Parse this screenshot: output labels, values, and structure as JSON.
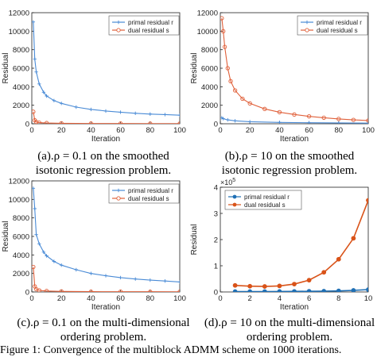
{
  "chart_data": [
    {
      "type": "line",
      "ylabel": "Residual",
      "xlabel": "Iteration",
      "xlim": [
        0,
        100
      ],
      "ylim": [
        0,
        12000
      ],
      "xticks": [
        "0",
        "20",
        "40",
        "60",
        "80",
        "100"
      ],
      "yticks": [
        "0",
        "2000",
        "4000",
        "6000",
        "8000",
        "10000",
        "12000"
      ],
      "legend_position": "top-right",
      "series": [
        {
          "name": "primal residual r",
          "color": "#4a8bd6",
          "marker": "plus",
          "x": [
            1,
            2,
            3,
            5,
            8,
            10,
            15,
            20,
            30,
            40,
            50,
            60,
            70,
            80,
            90,
            100
          ],
          "values": [
            11000,
            7000,
            5600,
            4300,
            3400,
            3000,
            2500,
            2200,
            1800,
            1550,
            1380,
            1250,
            1130,
            1050,
            990,
            930
          ]
        },
        {
          "name": "dual residual s",
          "color": "#e0603a",
          "marker": "circle",
          "x": [
            1,
            2,
            3,
            5,
            10,
            20,
            40,
            60,
            80,
            100
          ],
          "values": [
            1300,
            380,
            200,
            120,
            80,
            50,
            30,
            25,
            20,
            15
          ]
        }
      ],
      "caption": [
        "(a).ρ = 0.1 on the smoothed",
        "isotonic regression problem."
      ]
    },
    {
      "type": "line",
      "ylabel": "Residual",
      "xlabel": "Iteration",
      "xlim": [
        0,
        100
      ],
      "ylim": [
        0,
        12000
      ],
      "xticks": [
        "0",
        "20",
        "40",
        "60",
        "80",
        "100"
      ],
      "yticks": [
        "0",
        "2000",
        "4000",
        "6000",
        "8000",
        "10000",
        "12000"
      ],
      "legend_position": "top-right",
      "series": [
        {
          "name": "primal residual r",
          "color": "#4a8bd6",
          "marker": "plus",
          "x": [
            1,
            2,
            5,
            10,
            20,
            40,
            60,
            80,
            100
          ],
          "values": [
            650,
            550,
            420,
            320,
            220,
            150,
            110,
            90,
            70
          ]
        },
        {
          "name": "dual residual s",
          "color": "#e0603a",
          "marker": "circle",
          "x": [
            1,
            2,
            3,
            5,
            7,
            10,
            15,
            20,
            30,
            40,
            50,
            60,
            70,
            80,
            90,
            100
          ],
          "values": [
            11400,
            10000,
            8300,
            6000,
            4600,
            3600,
            2700,
            2200,
            1600,
            1250,
            1000,
            800,
            650,
            520,
            420,
            350
          ]
        }
      ],
      "caption": [
        "(b).ρ = 10 on the smoothed",
        "isotonic regression problem."
      ]
    },
    {
      "type": "line",
      "ylabel": "Residual",
      "xlabel": "Iteration",
      "xlim": [
        0,
        100
      ],
      "ylim": [
        0,
        12000
      ],
      "xticks": [
        "0",
        "20",
        "40",
        "60",
        "80",
        "100"
      ],
      "yticks": [
        "0",
        "2000",
        "4000",
        "6000",
        "8000",
        "10000",
        "12000"
      ],
      "legend_position": "top-right",
      "series": [
        {
          "name": "primal residual r",
          "color": "#4a8bd6",
          "marker": "plus",
          "x": [
            1,
            2,
            3,
            5,
            8,
            10,
            15,
            20,
            30,
            40,
            50,
            60,
            70,
            80,
            90,
            100
          ],
          "values": [
            11200,
            9000,
            6200,
            5200,
            4300,
            3900,
            3300,
            2900,
            2400,
            2000,
            1750,
            1550,
            1400,
            1280,
            1180,
            1080
          ]
        },
        {
          "name": "dual residual s",
          "color": "#e0603a",
          "marker": "circle",
          "x": [
            1,
            2,
            3,
            5,
            10,
            20,
            40,
            60,
            80,
            100
          ],
          "values": [
            2700,
            600,
            300,
            170,
            100,
            60,
            35,
            28,
            22,
            18
          ]
        }
      ],
      "caption": [
        "(c).ρ = 0.1 on the multi-dimensional",
        "ordering problem."
      ]
    },
    {
      "type": "line",
      "ylabel": "Residual",
      "xlabel": "Iteration",
      "xlim": [
        0,
        10
      ],
      "ylim": [
        0,
        400000
      ],
      "xticks": [
        "0",
        "2",
        "4",
        "6",
        "8",
        "10"
      ],
      "yticks": [
        "0",
        "1",
        "2",
        "3",
        "4"
      ],
      "y_multiplier": "×10^5",
      "legend_position": "top-left",
      "series": [
        {
          "name": "primal residual r",
          "color": "#1f6fb4",
          "marker": "dot",
          "x": [
            1,
            2,
            3,
            4,
            5,
            6,
            7,
            8,
            9,
            10
          ],
          "values": [
            1500,
            1500,
            1600,
            1800,
            2000,
            2500,
            3000,
            4000,
            6000,
            9000
          ]
        },
        {
          "name": "dual residual s",
          "color": "#d95319",
          "marker": "dot",
          "x": [
            1,
            2,
            3,
            4,
            5,
            6,
            7,
            8,
            9,
            10
          ],
          "values": [
            25000,
            22000,
            21000,
            23000,
            30000,
            45000,
            75000,
            125000,
            205000,
            350000
          ]
        }
      ],
      "caption": [
        "(d).ρ = 10 on the multi-dimensional",
        "ordering problem."
      ]
    }
  ],
  "footer_text": "Figure 1: Convergence of the multiblock ADMM scheme on 1000 iterations."
}
